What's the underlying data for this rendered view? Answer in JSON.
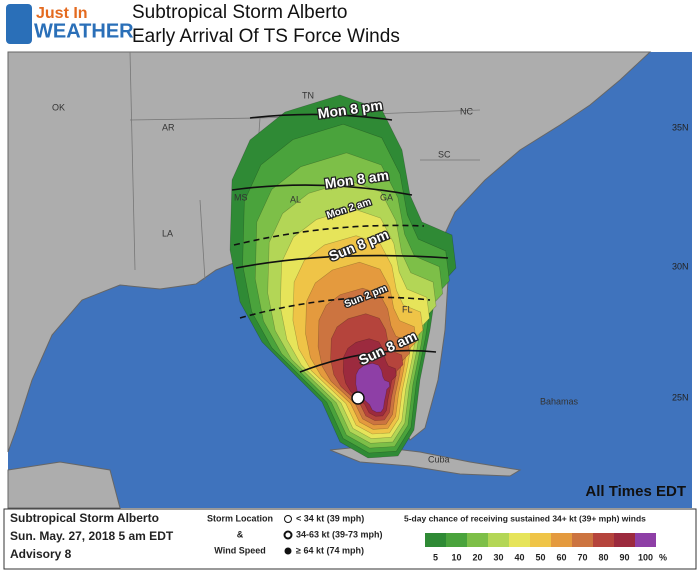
{
  "header": {
    "logo_top": "Just In",
    "logo_bottom": "WEATHER",
    "title": "Subtropical Storm Alberto",
    "subtitle": "Early Arrival Of  TS Force Winds"
  },
  "map": {
    "states": [
      {
        "label": "OK"
      },
      {
        "label": "AR"
      },
      {
        "label": "TN"
      },
      {
        "label": "NC"
      },
      {
        "label": "SC"
      },
      {
        "label": "MS"
      },
      {
        "label": "AL"
      },
      {
        "label": "GA"
      },
      {
        "label": "LA"
      },
      {
        "label": "FL"
      }
    ],
    "places": [
      "Cuba",
      "Bahamas"
    ],
    "latitudes": [
      "35N",
      "30N",
      "25N"
    ],
    "arrival_labels": [
      "Mon  8  pm",
      "Mon  8  am",
      "Mon  2  am",
      "Sun  8  pm",
      "Sun  2  pm",
      "Sun  8  am"
    ],
    "note": "All Times EDT"
  },
  "legend": {
    "storm": "Subtropical Storm Alberto",
    "date": "Sun. May. 27, 2018  5 am EDT",
    "advisory": "Advisory 8",
    "key_title": [
      "Storm Location",
      "&",
      "Wind Speed"
    ],
    "key_items": [
      "< 34 kt (39 mph)",
      "34-63 kt (39-73 mph)",
      "≥ 64 kt (74 mph)"
    ],
    "scale_title": "5-day chance of receiving sustained 34+ kt (39+ mph) winds",
    "scale": [
      {
        "label": "5",
        "color": "#2f8a35"
      },
      {
        "label": "10",
        "color": "#4aa33c"
      },
      {
        "label": "20",
        "color": "#7dbf48"
      },
      {
        "label": "30",
        "color": "#b3d656"
      },
      {
        "label": "40",
        "color": "#e6e45a"
      },
      {
        "label": "50",
        "color": "#efc447"
      },
      {
        "label": "60",
        "color": "#e49a3e"
      },
      {
        "label": "70",
        "color": "#cc7440"
      },
      {
        "label": "80",
        "color": "#b5443c"
      },
      {
        "label": "90",
        "color": "#9c2a3e"
      },
      {
        "label": "100",
        "color": "#8e3fa6"
      }
    ],
    "unit": "%"
  }
}
